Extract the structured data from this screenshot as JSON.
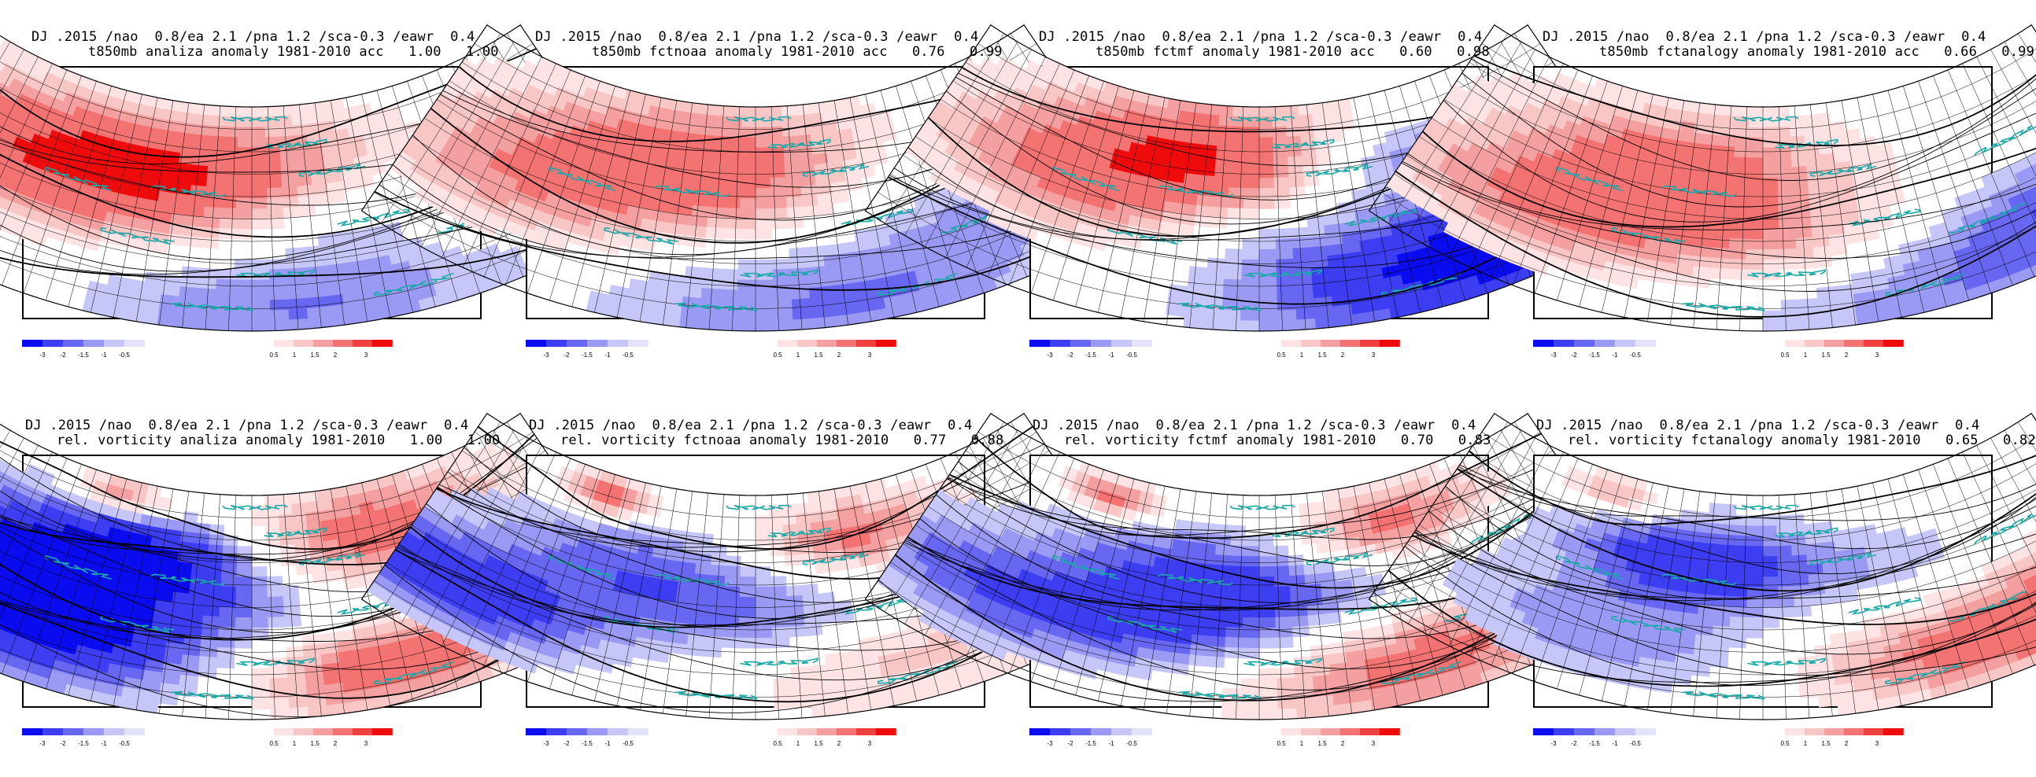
{
  "header_line": "DJ .2015 /nao  0.8/ea 2.1 /pna 1.2 /sca-0.3 /eawr  0.4",
  "colorbar": {
    "negative_labels": [
      "-3",
      "-2",
      "-1.5",
      "-1",
      "-0.5"
    ],
    "positive_labels": [
      "0.5",
      "1",
      "1.5",
      "2",
      "3"
    ],
    "negative_colors": [
      "#0b0bf0",
      "#3d3df2",
      "#6767f2",
      "#9a9af4",
      "#c6c6f8",
      "#e3e3fb"
    ],
    "positive_colors": [
      "#fde3e3",
      "#f9c6c6",
      "#f5a0a0",
      "#f37272",
      "#f03f3f",
      "#ef0b0b"
    ]
  },
  "panels": [
    {
      "row": 1,
      "col": 1,
      "title": "t850mb analiza anomaly 1981-2010 acc   1.00   1.00",
      "variable": "t850mb",
      "source": "analiza",
      "acc": [
        "1.00",
        "1.00"
      ],
      "pattern": [
        [
          0.18,
          0.42,
          2.4,
          0.22
        ],
        [
          0.38,
          0.3,
          1.8,
          0.18
        ],
        [
          0.88,
          0.6,
          1.6,
          0.12
        ],
        [
          0.55,
          0.88,
          -1.6,
          0.2
        ],
        [
          0.72,
          0.55,
          -0.8,
          0.12
        ],
        [
          0.6,
          0.18,
          0.6,
          0.14
        ]
      ]
    },
    {
      "row": 1,
      "col": 2,
      "title": "t850mb fctnoaa anomaly 1981-2010 acc   0.76   0.99",
      "variable": "t850mb",
      "source": "fctnoaa",
      "acc": [
        "0.76",
        "0.99"
      ],
      "pattern": [
        [
          0.42,
          0.25,
          2.2,
          0.2
        ],
        [
          0.25,
          0.45,
          1.4,
          0.2
        ],
        [
          0.1,
          0.62,
          0.9,
          0.14
        ],
        [
          0.6,
          0.88,
          -1.6,
          0.22
        ],
        [
          0.9,
          0.62,
          -1.0,
          0.14
        ],
        [
          0.75,
          0.35,
          -0.5,
          0.1
        ]
      ]
    },
    {
      "row": 1,
      "col": 3,
      "title": "t850mb fctmf anomaly 1981-2010 acc   0.60   0.98",
      "variable": "t850mb",
      "source": "fctmf",
      "acc": [
        "0.60",
        "0.98"
      ],
      "pattern": [
        [
          0.4,
          0.22,
          2.8,
          0.18
        ],
        [
          0.22,
          0.48,
          1.8,
          0.18
        ],
        [
          0.95,
          0.78,
          -2.8,
          0.2
        ],
        [
          0.7,
          0.82,
          -2.0,
          0.2
        ],
        [
          0.72,
          0.3,
          -1.5,
          0.12
        ],
        [
          0.48,
          0.58,
          -0.6,
          0.1
        ]
      ]
    },
    {
      "row": 1,
      "col": 4,
      "title": "t850mb fctanalogy anomaly 1981-2010 acc   0.66   0.99",
      "variable": "t850mb",
      "source": "fctanalogy",
      "acc": [
        "0.66",
        "0.99"
      ],
      "pattern": [
        [
          0.38,
          0.28,
          2.2,
          0.18
        ],
        [
          0.28,
          0.55,
          1.6,
          0.18
        ],
        [
          0.55,
          0.62,
          1.0,
          0.14
        ],
        [
          0.75,
          0.9,
          -1.4,
          0.2
        ],
        [
          0.95,
          0.7,
          -1.5,
          0.14
        ],
        [
          0.12,
          0.68,
          1.0,
          0.14
        ]
      ]
    },
    {
      "row": 2,
      "col": 1,
      "title": "rel. vorticity analiza anomaly 1981-2010   1.00   1.00",
      "variable": "rel. vorticity",
      "source": "analiza",
      "acc": [
        "1.00",
        "1.00"
      ],
      "pattern": [
        [
          0.1,
          0.55,
          -2.8,
          0.2
        ],
        [
          0.35,
          0.3,
          -3.0,
          0.14
        ],
        [
          0.22,
          0.72,
          -2.4,
          0.18
        ],
        [
          0.68,
          0.22,
          2.6,
          0.16
        ],
        [
          0.28,
          0.08,
          2.4,
          0.06
        ],
        [
          0.68,
          0.82,
          2.8,
          0.14
        ],
        [
          0.85,
          0.55,
          -1.4,
          0.1
        ],
        [
          0.5,
          0.5,
          -0.6,
          0.1
        ]
      ]
    },
    {
      "row": 2,
      "col": 2,
      "title": "rel. vorticity fctnoaa anomaly 1981-2010   0.77   0.88",
      "variable": "rel. vorticity",
      "source": "fctnoaa",
      "acc": [
        "0.77",
        "0.88"
      ],
      "pattern": [
        [
          0.35,
          0.42,
          -2.0,
          0.18
        ],
        [
          0.08,
          0.72,
          -2.6,
          0.14
        ],
        [
          0.65,
          0.22,
          2.4,
          0.12
        ],
        [
          0.25,
          0.1,
          2.8,
          0.06
        ],
        [
          0.7,
          0.78,
          1.2,
          0.18
        ],
        [
          0.9,
          0.48,
          -0.8,
          0.1
        ],
        [
          0.55,
          0.6,
          -0.8,
          0.12
        ]
      ]
    },
    {
      "row": 2,
      "col": 3,
      "title": "rel. vorticity fctmf anomaly 1981-2010   0.70   0.83",
      "variable": "rel. vorticity",
      "source": "fctmf",
      "acc": [
        "0.70",
        "0.83"
      ],
      "pattern": [
        [
          0.45,
          0.4,
          -2.4,
          0.18
        ],
        [
          0.12,
          0.68,
          -1.8,
          0.16
        ],
        [
          0.7,
          0.2,
          2.6,
          0.12
        ],
        [
          0.25,
          0.1,
          2.6,
          0.06
        ],
        [
          0.7,
          0.82,
          2.4,
          0.18
        ],
        [
          0.92,
          0.5,
          -0.8,
          0.1
        ],
        [
          0.4,
          0.65,
          -1.2,
          0.14
        ]
      ]
    },
    {
      "row": 2,
      "col": 4,
      "title": "rel. vorticity fctanalogy anomaly 1981-2010   0.65   0.82",
      "variable": "rel. vorticity",
      "source": "fctanalogy",
      "acc": [
        "0.65",
        "0.82"
      ],
      "pattern": [
        [
          0.4,
          0.32,
          -2.8,
          0.14
        ],
        [
          0.3,
          0.7,
          -1.4,
          0.16
        ],
        [
          0.85,
          0.82,
          2.6,
          0.14
        ],
        [
          0.25,
          0.1,
          2.0,
          0.06
        ],
        [
          0.62,
          0.78,
          0.8,
          0.14
        ],
        [
          0.7,
          0.35,
          -0.6,
          0.1
        ],
        [
          0.95,
          0.6,
          1.0,
          0.1
        ]
      ]
    }
  ]
}
